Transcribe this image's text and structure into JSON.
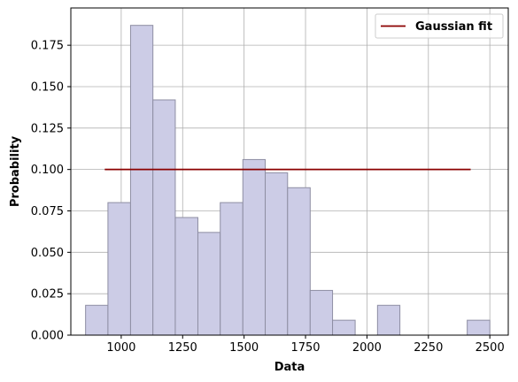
{
  "chart_data": {
    "type": "bar",
    "subtype": "histogram",
    "xlabel": "Data",
    "ylabel": "Probability",
    "xlim": [
      795,
      2575
    ],
    "ylim": [
      0,
      0.1975
    ],
    "xticks": [
      1000,
      1250,
      1500,
      1750,
      2000,
      2250,
      2500
    ],
    "xtick_labels": [
      "1000",
      "1250",
      "1500",
      "1750",
      "2000",
      "2250",
      "2500"
    ],
    "yticks": [
      0.0,
      0.025,
      0.05,
      0.075,
      0.1,
      0.125,
      0.15,
      0.175
    ],
    "ytick_labels": [
      "0.000",
      "0.025",
      "0.050",
      "0.075",
      "0.100",
      "0.125",
      "0.150",
      "0.175"
    ],
    "grid": true,
    "legend_position": "top-right",
    "bins": [
      {
        "start": 855,
        "end": 946,
        "value": 0.018
      },
      {
        "start": 946,
        "end": 1038,
        "value": 0.08
      },
      {
        "start": 1038,
        "end": 1129,
        "value": 0.187
      },
      {
        "start": 1129,
        "end": 1220,
        "value": 0.142
      },
      {
        "start": 1220,
        "end": 1312,
        "value": 0.071
      },
      {
        "start": 1312,
        "end": 1403,
        "value": 0.062
      },
      {
        "start": 1403,
        "end": 1495,
        "value": 0.08
      },
      {
        "start": 1495,
        "end": 1586,
        "value": 0.106
      },
      {
        "start": 1586,
        "end": 1677,
        "value": 0.098
      },
      {
        "start": 1677,
        "end": 1769,
        "value": 0.089
      },
      {
        "start": 1769,
        "end": 1860,
        "value": 0.027
      },
      {
        "start": 1860,
        "end": 1952,
        "value": 0.009
      },
      {
        "start": 1952,
        "end": 2043,
        "value": 0.0
      },
      {
        "start": 2043,
        "end": 2134,
        "value": 0.018
      },
      {
        "start": 2134,
        "end": 2226,
        "value": 0.0
      },
      {
        "start": 2226,
        "end": 2317,
        "value": 0.0
      },
      {
        "start": 2317,
        "end": 2408,
        "value": 0.0
      },
      {
        "start": 2408,
        "end": 2500,
        "value": 0.009
      }
    ],
    "series": [
      {
        "name": "Gaussian fit",
        "type": "line",
        "x": [
          933,
          2422
        ],
        "y": [
          0.1,
          0.1
        ]
      }
    ],
    "colors": {
      "bar_fill": "#cccce6",
      "bar_edge": "#8e8ea3",
      "line": "#8b0000",
      "grid": "#b0b0b0"
    }
  }
}
